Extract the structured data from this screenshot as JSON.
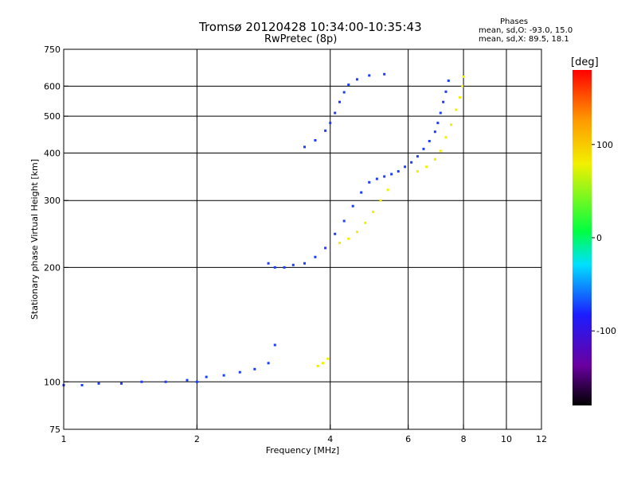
{
  "header": {
    "title_line1": "Tromsø 20120428 10:34:00-10:35:43",
    "title_line2": "RwPretec (8p)",
    "phases_title": "Phases",
    "phases_o": "mean, sd,O: -93.0, 15.0",
    "phases_x": "mean, sd,X: 89.5, 18.1"
  },
  "chart_data": {
    "type": "scatter",
    "xlabel": "Frequency [MHz]",
    "ylabel": "Stationary phase Virtual Height [km]",
    "x_scale": "log",
    "y_scale": "log",
    "xlim": [
      1,
      12
    ],
    "ylim": [
      75,
      750
    ],
    "x_ticks": [
      1,
      2,
      4,
      6,
      8,
      10,
      12
    ],
    "y_ticks": [
      75,
      100,
      200,
      300,
      400,
      500,
      600,
      750
    ],
    "x_grid": [
      2,
      4,
      6,
      8,
      10
    ],
    "y_grid": [
      100,
      200,
      300,
      400,
      500,
      600
    ],
    "grid": true,
    "colorbar": {
      "label": "[deg]",
      "range": [
        -180,
        180
      ],
      "ticks": [
        100,
        0,
        -100
      ]
    },
    "series": [
      {
        "name": "O",
        "phase_deg": -93.0,
        "color": "#1c3cff",
        "points": [
          [
            1.0,
            98
          ],
          [
            1.1,
            98
          ],
          [
            1.2,
            99
          ],
          [
            1.35,
            99
          ],
          [
            1.5,
            100
          ],
          [
            1.7,
            100
          ],
          [
            1.9,
            101
          ],
          [
            2.0,
            100
          ],
          [
            2.1,
            103
          ],
          [
            2.3,
            104
          ],
          [
            2.5,
            106
          ],
          [
            2.7,
            108
          ],
          [
            2.9,
            112
          ],
          [
            3.0,
            125
          ],
          [
            3.15,
            200
          ],
          [
            3.3,
            203
          ],
          [
            3.5,
            205
          ],
          [
            3.7,
            213
          ],
          [
            3.9,
            225
          ],
          [
            4.1,
            245
          ],
          [
            4.3,
            265
          ],
          [
            4.5,
            290
          ],
          [
            4.7,
            315
          ],
          [
            4.9,
            335
          ],
          [
            5.1,
            342
          ],
          [
            5.3,
            347
          ],
          [
            5.5,
            352
          ],
          [
            5.7,
            358
          ],
          [
            5.9,
            368
          ],
          [
            6.1,
            378
          ],
          [
            6.3,
            392
          ],
          [
            6.5,
            410
          ],
          [
            6.7,
            430
          ],
          [
            6.9,
            455
          ],
          [
            7.0,
            480
          ],
          [
            7.1,
            510
          ],
          [
            7.2,
            545
          ],
          [
            7.3,
            580
          ],
          [
            7.4,
            620
          ],
          [
            3.5,
            415
          ],
          [
            3.7,
            432
          ],
          [
            3.9,
            458
          ],
          [
            4.0,
            480
          ],
          [
            4.1,
            510
          ],
          [
            4.2,
            545
          ],
          [
            4.3,
            578
          ],
          [
            4.4,
            605
          ],
          [
            4.6,
            625
          ],
          [
            4.9,
            640
          ],
          [
            5.3,
            645
          ],
          [
            3.0,
            200
          ],
          [
            2.9,
            205
          ]
        ]
      },
      {
        "name": "X",
        "phase_deg": 89.5,
        "color": "#f2f000",
        "points": [
          [
            3.75,
            110
          ],
          [
            3.85,
            112
          ],
          [
            3.95,
            115
          ],
          [
            4.2,
            232
          ],
          [
            4.4,
            238
          ],
          [
            4.6,
            248
          ],
          [
            4.8,
            262
          ],
          [
            5.0,
            280
          ],
          [
            5.2,
            300
          ],
          [
            5.4,
            320
          ],
          [
            6.3,
            358
          ],
          [
            6.6,
            368
          ],
          [
            6.9,
            385
          ],
          [
            7.1,
            405
          ],
          [
            7.3,
            440
          ],
          [
            7.5,
            475
          ],
          [
            7.7,
            520
          ],
          [
            7.85,
            560
          ],
          [
            7.95,
            600
          ],
          [
            8.0,
            635
          ]
        ]
      }
    ]
  }
}
